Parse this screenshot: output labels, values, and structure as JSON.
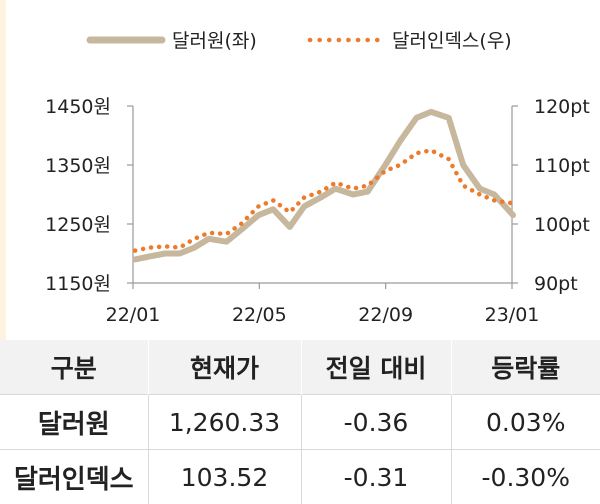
{
  "chart_data": {
    "type": "line",
    "x_ticks": [
      "22/01",
      "22/05",
      "22/09",
      "23/01"
    ],
    "y_left": {
      "ticks": [
        "1450원",
        "1350원",
        "1250원",
        "1150원"
      ],
      "ylim": [
        1150,
        1450
      ]
    },
    "y_right": {
      "ticks": [
        "120pt",
        "110pt",
        "100pt",
        "90pt"
      ],
      "ylim": [
        90,
        120
      ]
    },
    "grid": false,
    "legend_position": "top",
    "series": [
      {
        "name": "달러원(좌)",
        "axis": "left",
        "style": "solid-thick",
        "color": "#c7b79d",
        "x": [
          "2022-01-03",
          "2022-01-17",
          "2022-02-01",
          "2022-02-15",
          "2022-03-01",
          "2022-03-15",
          "2022-04-01",
          "2022-04-15",
          "2022-05-02",
          "2022-05-16",
          "2022-06-01",
          "2022-06-15",
          "2022-07-01",
          "2022-07-15",
          "2022-08-01",
          "2022-08-15",
          "2022-09-01",
          "2022-09-15",
          "2022-10-01",
          "2022-10-15",
          "2022-11-01",
          "2022-11-15",
          "2022-12-01",
          "2022-12-15",
          "2023-01-02"
        ],
        "values": [
          1190,
          1195,
          1200,
          1200,
          1210,
          1225,
          1220,
          1240,
          1265,
          1275,
          1245,
          1280,
          1295,
          1310,
          1300,
          1305,
          1350,
          1390,
          1430,
          1440,
          1430,
          1350,
          1310,
          1300,
          1265
        ]
      },
      {
        "name": "달러인덱스(우)",
        "axis": "right",
        "style": "dotted",
        "color": "#ec7b2c",
        "x": [
          "2022-01-03",
          "2022-01-17",
          "2022-02-01",
          "2022-02-15",
          "2022-03-01",
          "2022-03-15",
          "2022-04-01",
          "2022-04-15",
          "2022-05-02",
          "2022-05-16",
          "2022-06-01",
          "2022-06-15",
          "2022-07-01",
          "2022-07-15",
          "2022-08-01",
          "2022-08-15",
          "2022-09-01",
          "2022-09-15",
          "2022-10-01",
          "2022-10-15",
          "2022-11-01",
          "2022-11-15",
          "2022-12-01",
          "2022-12-15",
          "2023-01-02"
        ],
        "values": [
          95.5,
          96.0,
          96.2,
          96.0,
          97.5,
          98.5,
          98.3,
          100.0,
          103.0,
          104.0,
          102.0,
          104.5,
          105.5,
          107.0,
          106.0,
          106.5,
          109.0,
          110.0,
          112.0,
          112.5,
          111.0,
          106.5,
          105.0,
          104.0,
          103.5
        ]
      }
    ]
  },
  "table": {
    "headers": [
      "구분",
      "현재가",
      "전일 대비",
      "등락률"
    ],
    "rows": [
      {
        "label": "달러원",
        "price": "1,260.33",
        "change": "-0.36",
        "rate": "0.03%"
      },
      {
        "label": "달러인덱스",
        "price": "103.52",
        "change": "-0.31",
        "rate": "-0.30%"
      }
    ]
  }
}
